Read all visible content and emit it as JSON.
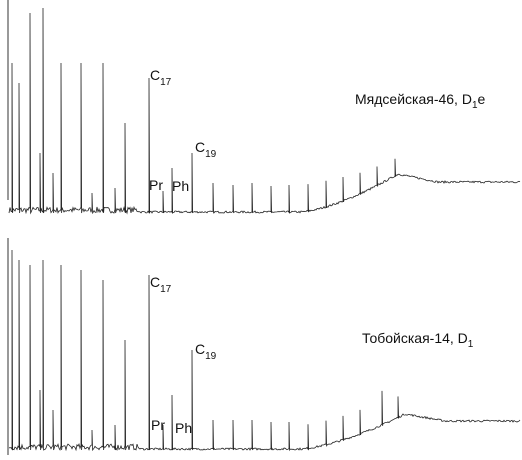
{
  "panels": [
    {
      "sample": {
        "text": "Мядсейская-46, D",
        "sub": "1",
        "suffix": "e"
      },
      "c17": {
        "base": "C",
        "sub": "17"
      },
      "c19": {
        "base": "C",
        "sub": "19"
      },
      "pr": "Pr",
      "ph": "Ph"
    },
    {
      "sample": {
        "text": "Тобойская-14, D",
        "sub": "1"
      },
      "c17": {
        "base": "C",
        "sub": "17"
      },
      "c19": {
        "base": "C",
        "sub": "19"
      },
      "pr": "Pr",
      "ph": "Ph"
    }
  ]
}
